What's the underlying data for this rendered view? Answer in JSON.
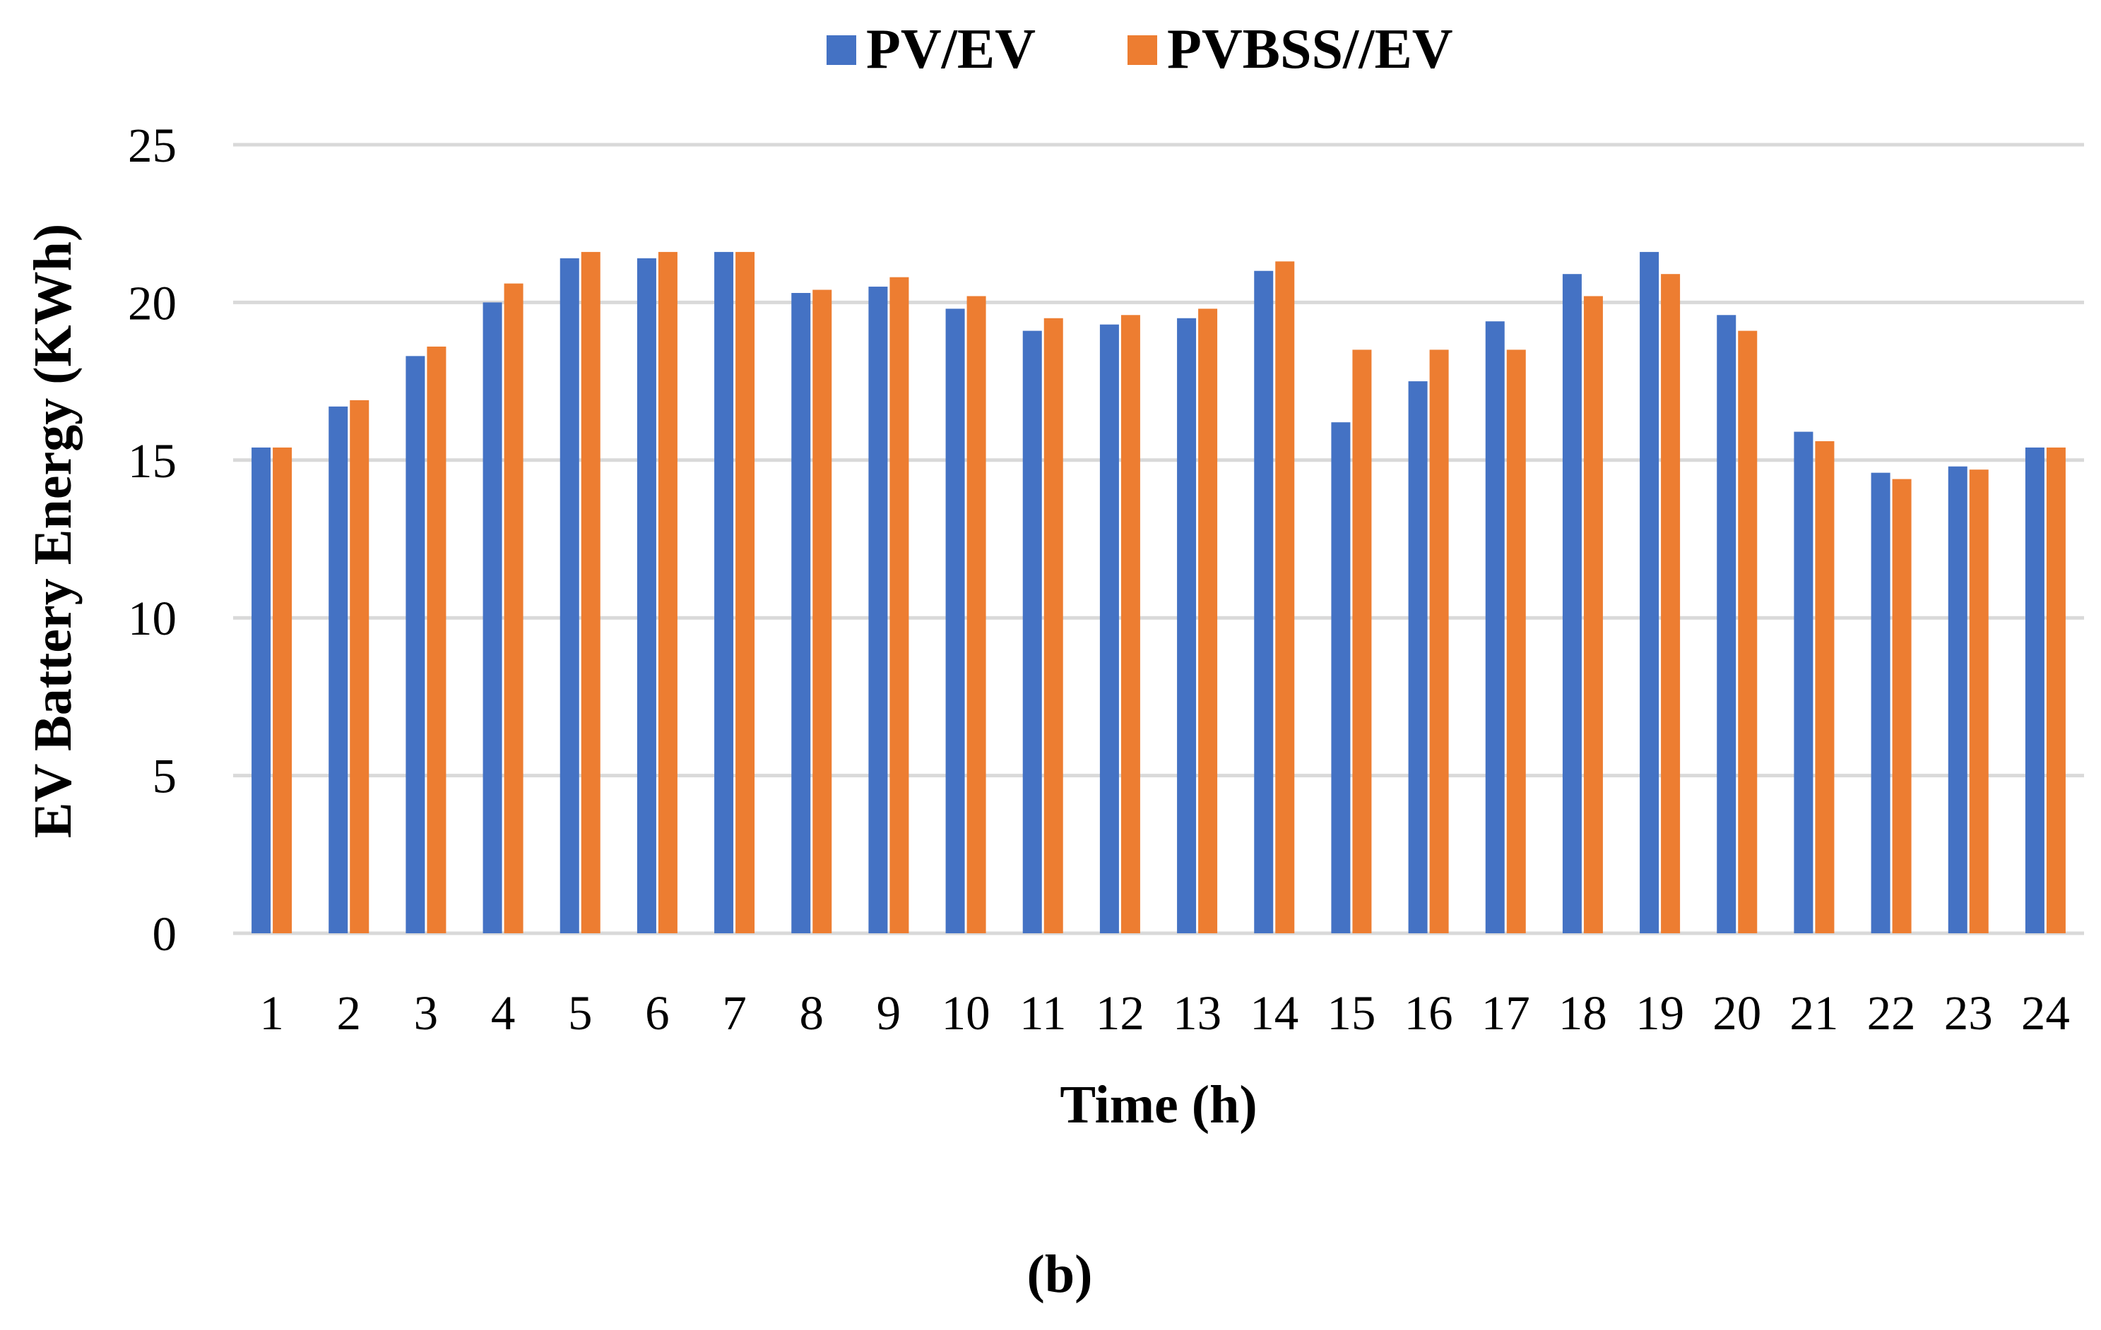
{
  "chart_data": {
    "type": "bar",
    "title": "",
    "xlabel": "Time (h)",
    "ylabel": "EV Battery Energy (KWh)",
    "ylim": [
      0,
      25
    ],
    "yticks": [
      0,
      5,
      10,
      15,
      20,
      25
    ],
    "grid": true,
    "legend_position": "top-center",
    "categories": [
      "1",
      "2",
      "3",
      "4",
      "5",
      "6",
      "7",
      "8",
      "9",
      "10",
      "11",
      "12",
      "13",
      "14",
      "15",
      "16",
      "17",
      "18",
      "19",
      "20",
      "21",
      "22",
      "23",
      "24"
    ],
    "series": [
      {
        "name": "PV/EV",
        "color": "#4472C4",
        "values": [
          15.4,
          16.7,
          18.3,
          20.0,
          21.4,
          21.4,
          21.6,
          20.3,
          20.5,
          19.8,
          19.1,
          19.3,
          19.5,
          21.0,
          16.2,
          17.5,
          19.4,
          20.9,
          21.6,
          19.6,
          15.9,
          14.6,
          14.8,
          15.4
        ]
      },
      {
        "name": "PVBSS//EV",
        "color": "#ED7D31",
        "values": [
          15.4,
          16.9,
          18.6,
          20.6,
          21.6,
          21.6,
          21.6,
          20.4,
          20.8,
          20.2,
          19.5,
          19.6,
          19.8,
          21.3,
          18.5,
          18.5,
          18.5,
          20.2,
          20.9,
          19.1,
          15.6,
          14.4,
          14.7,
          15.4
        ]
      }
    ],
    "caption": "(b)"
  }
}
